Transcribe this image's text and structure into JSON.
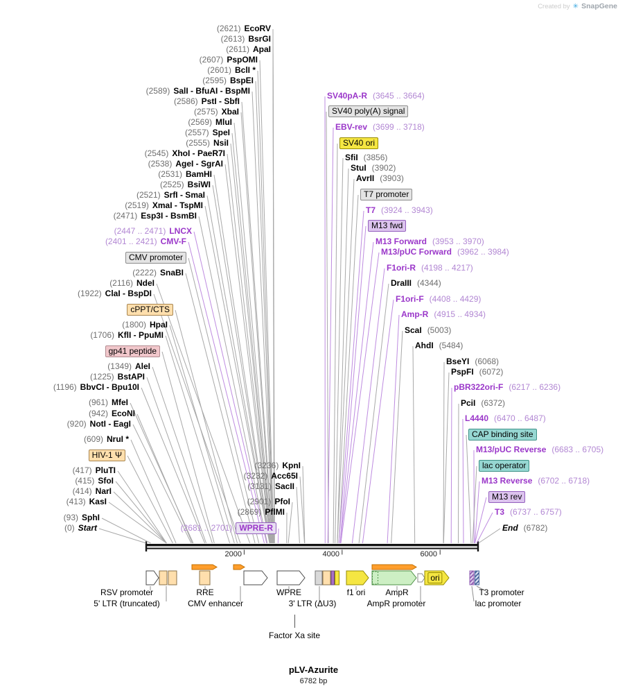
{
  "watermark": {
    "prefix": "Created by",
    "brand": "SnapGene"
  },
  "title": {
    "name": "pLV-Azurite",
    "length": "6782 bp"
  },
  "ruler": {
    "ticks": [
      "2000",
      "4000",
      "6000"
    ]
  },
  "left_labels": [
    {
      "pos": "(2621)",
      "name": "EcoRV"
    },
    {
      "pos": "(2613)",
      "name": "BsrGI"
    },
    {
      "pos": "(2611)",
      "name": "ApaI"
    },
    {
      "pos": "(2607)",
      "name": "PspOMI"
    },
    {
      "pos": "(2601)",
      "name": "BclI *"
    },
    {
      "pos": "(2595)",
      "name": "BspEI"
    },
    {
      "pos": "(2589)",
      "name": "SalI - BfuAI - BspMI"
    },
    {
      "pos": "(2586)",
      "name": "PstI - SbfI"
    },
    {
      "pos": "(2575)",
      "name": "XbaI"
    },
    {
      "pos": "(2569)",
      "name": "MluI"
    },
    {
      "pos": "(2557)",
      "name": "SpeI"
    },
    {
      "pos": "(2555)",
      "name": "NsiI"
    },
    {
      "pos": "(2545)",
      "name": "XhoI - PaeR7I"
    },
    {
      "pos": "(2538)",
      "name": "AgeI - SgrAI"
    },
    {
      "pos": "(2531)",
      "name": "BamHI"
    },
    {
      "pos": "(2525)",
      "name": "BsiWI"
    },
    {
      "pos": "(2521)",
      "name": "SrfI - SmaI"
    },
    {
      "pos": "(2519)",
      "name": "XmaI - TspMI"
    },
    {
      "pos": "(2471)",
      "name": "Esp3I - BsmBI"
    },
    {
      "pos": "(2447 .. 2471)",
      "name": "LNCX"
    },
    {
      "pos": "(2401 .. 2421)",
      "name": "CMV-F"
    },
    {
      "pos": "",
      "name": "CMV promoter"
    },
    {
      "pos": "(2222)",
      "name": "SnaBI"
    },
    {
      "pos": "(2116)",
      "name": "NdeI"
    },
    {
      "pos": "(1922)",
      "name": "ClaI - BspDI"
    },
    {
      "pos": "",
      "name": "cPPT/CTS"
    },
    {
      "pos": "(1800)",
      "name": "HpaI"
    },
    {
      "pos": "(1706)",
      "name": "KflI - PpuMI"
    },
    {
      "pos": "",
      "name": "gp41 peptide"
    },
    {
      "pos": "(1349)",
      "name": "AleI"
    },
    {
      "pos": "(1225)",
      "name": "BstAPI"
    },
    {
      "pos": "(1196)",
      "name": "BbvCI - Bpu10I"
    },
    {
      "pos": "(961)",
      "name": "MfeI"
    },
    {
      "pos": "(942)",
      "name": "EcoNI"
    },
    {
      "pos": "(920)",
      "name": "NotI - EagI"
    },
    {
      "pos": "(609)",
      "name": "NruI *"
    },
    {
      "pos": "",
      "name": "HIV-1 Ψ"
    },
    {
      "pos": "(417)",
      "name": "PluTI"
    },
    {
      "pos": "(415)",
      "name": "SfoI"
    },
    {
      "pos": "(414)",
      "name": "NarI"
    },
    {
      "pos": "(413)",
      "name": "KasI"
    },
    {
      "pos": "(93)",
      "name": "SphI"
    },
    {
      "pos": "(0)",
      "name": "Start"
    }
  ],
  "mid_labels": [
    {
      "pos": "(3236)",
      "name": "KpnI"
    },
    {
      "pos": "(3232)",
      "name": "Acc65I"
    },
    {
      "pos": "(3131)",
      "name": "SacII"
    },
    {
      "pos": "(2901)",
      "name": "PfoI"
    },
    {
      "pos": "(2869)",
      "name": "PflMI"
    },
    {
      "pos": "(2681 .. 2701)",
      "name": "WPRE-R"
    }
  ],
  "right_labels": [
    {
      "name": "SV40pA-R",
      "pos": "(3645 .. 3664)"
    },
    {
      "name": "SV40 poly(A) signal",
      "pos": ""
    },
    {
      "name": "EBV-rev",
      "pos": "(3699 .. 3718)"
    },
    {
      "name": "SV40 ori",
      "pos": ""
    },
    {
      "name": "SfiI",
      "pos": "(3856)"
    },
    {
      "name": "StuI",
      "pos": "(3902)"
    },
    {
      "name": "AvrII",
      "pos": "(3903)"
    },
    {
      "name": "T7 promoter",
      "pos": ""
    },
    {
      "name": "T7",
      "pos": "(3924 .. 3943)"
    },
    {
      "name": "M13 fwd",
      "pos": ""
    },
    {
      "name": "M13 Forward",
      "pos": "(3953 .. 3970)"
    },
    {
      "name": "M13/pUC Forward",
      "pos": "(3962 .. 3984)"
    },
    {
      "name": "F1ori-R",
      "pos": "(4198 .. 4217)"
    },
    {
      "name": "DraIII",
      "pos": "(4344)"
    },
    {
      "name": "F1ori-F",
      "pos": "(4408 .. 4429)"
    },
    {
      "name": "Amp-R",
      "pos": "(4915 .. 4934)"
    },
    {
      "name": "ScaI",
      "pos": "(5003)"
    },
    {
      "name": "AhdI",
      "pos": "(5484)"
    },
    {
      "name": "BseYI",
      "pos": "(6068)"
    },
    {
      "name": "PspFI",
      "pos": "(6072)"
    },
    {
      "name": "pBR322ori-F",
      "pos": "(6217 .. 6236)"
    },
    {
      "name": "PciI",
      "pos": "(6372)"
    },
    {
      "name": "L4440",
      "pos": "(6470 .. 6487)"
    },
    {
      "name": "CAP binding site",
      "pos": ""
    },
    {
      "name": "M13/pUC Reverse",
      "pos": "(6683 .. 6705)"
    },
    {
      "name": "lac operator",
      "pos": ""
    },
    {
      "name": "M13 Reverse",
      "pos": "(6702 .. 6718)"
    },
    {
      "name": "M13 rev",
      "pos": ""
    },
    {
      "name": "T3",
      "pos": "(6737 .. 6757)"
    },
    {
      "name": "End",
      "pos": "(6782)"
    }
  ],
  "features_row1": [
    "RSV promoter",
    "RRE",
    "WPRE",
    "f1 ori",
    "AmpR",
    "T3 promoter"
  ],
  "features_row2": [
    "5' LTR (truncated)",
    "CMV enhancer",
    "3' LTR (ΔU3)",
    "AmpR promoter",
    "lac promoter"
  ],
  "ori_label": "ori",
  "factor_xa_label": "Factor Xa site",
  "colors": {
    "primer_text": "#9A36C9",
    "primer_line": "#BE8BE0",
    "restriction_text": "#000000",
    "position_text": "#6E6E6E",
    "leader_line": "#A8A8A8",
    "map_line": "#161616",
    "orf_orange": "#FF9E2C",
    "feature_tan": "#FFDFAD",
    "feature_yellow": "#F5E642",
    "feature_green": "#CDEFC4",
    "feature_teal": "#96D7D2",
    "feature_lavender": "#DCC3EE",
    "feature_pink": "#F1C7CB",
    "feature_gray": "#E4E4E4",
    "logo_blue": "#3FA9E0"
  }
}
